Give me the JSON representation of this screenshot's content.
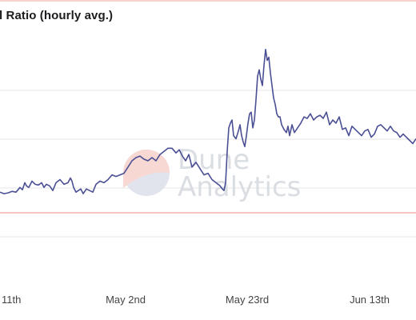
{
  "chart_data": {
    "type": "line",
    "title": "l Ratio (hourly avg.)",
    "xlabel": "",
    "ylabel": "",
    "x_ticks": [
      "11th",
      "May 2nd",
      "May 23rd",
      "Jun 13th"
    ],
    "reference_line": {
      "color": "#f2a59a"
    },
    "series": [
      {
        "color": "#4b4f94",
        "x": [
          0,
          5,
          10,
          15,
          20,
          25,
          28,
          31,
          33,
          36,
          40,
          44,
          48,
          52,
          55,
          58,
          62,
          66,
          70,
          75,
          80,
          85,
          88,
          90,
          92,
          95,
          98,
          101,
          104,
          108,
          112,
          116,
          120,
          125,
          130,
          135,
          140,
          145,
          150,
          155,
          160,
          165,
          170,
          175,
          180,
          185,
          190,
          195,
          200,
          205,
          210,
          215,
          220,
          224,
          228,
          232,
          236,
          240,
          245,
          250,
          255,
          260,
          265,
          270,
          275,
          278,
          280,
          282,
          284,
          286,
          288,
          290,
          292,
          295,
          298,
          300,
          302,
          304,
          306,
          308,
          310,
          312,
          314,
          316,
          318,
          320,
          322,
          324,
          326,
          328,
          330,
          332,
          334,
          336,
          338,
          340,
          342,
          344,
          346,
          348,
          350,
          352,
          355,
          358,
          360,
          362,
          365,
          368,
          372,
          376,
          380,
          384,
          388,
          392,
          396,
          400,
          404,
          408,
          412,
          416,
          420,
          424,
          428,
          432,
          436,
          440,
          444,
          448,
          452,
          456,
          460,
          464,
          468,
          472,
          476,
          480,
          484,
          488,
          492,
          496,
          500,
          504,
          508,
          512,
          516,
          520
        ],
        "y": [
          0.04,
          0.03,
          0.035,
          0.045,
          0.04,
          0.07,
          0.055,
          0.1,
          0.08,
          0.07,
          0.11,
          0.09,
          0.085,
          0.1,
          0.07,
          0.09,
          0.08,
          0.05,
          0.1,
          0.12,
          0.09,
          0.1,
          0.13,
          0.11,
          0.07,
          0.04,
          0.05,
          0.06,
          0.03,
          0.06,
          0.05,
          0.04,
          0.09,
          0.11,
          0.1,
          0.12,
          0.15,
          0.14,
          0.15,
          0.16,
          0.2,
          0.24,
          0.26,
          0.27,
          0.25,
          0.24,
          0.26,
          0.24,
          0.28,
          0.3,
          0.32,
          0.32,
          0.29,
          0.31,
          0.27,
          0.24,
          0.28,
          0.2,
          0.23,
          0.19,
          0.15,
          0.16,
          0.12,
          0.1,
          0.08,
          0.06,
          0.05,
          0.1,
          0.3,
          0.45,
          0.48,
          0.5,
          0.4,
          0.38,
          0.43,
          0.47,
          0.4,
          0.36,
          0.33,
          0.4,
          0.48,
          0.54,
          0.55,
          0.45,
          0.5,
          0.63,
          0.78,
          0.82,
          0.76,
          0.72,
          0.85,
          0.95,
          0.88,
          0.9,
          0.8,
          0.72,
          0.64,
          0.6,
          0.54,
          0.52,
          0.52,
          0.47,
          0.44,
          0.42,
          0.46,
          0.4,
          0.47,
          0.42,
          0.45,
          0.48,
          0.52,
          0.51,
          0.54,
          0.5,
          0.52,
          0.53,
          0.51,
          0.55,
          0.47,
          0.5,
          0.48,
          0.52,
          0.44,
          0.45,
          0.4,
          0.46,
          0.44,
          0.42,
          0.4,
          0.43,
          0.44,
          0.39,
          0.41,
          0.46,
          0.47,
          0.45,
          0.43,
          0.46,
          0.43,
          0.42,
          0.39,
          0.41,
          0.39,
          0.37,
          0.35,
          0.38
        ]
      }
    ]
  },
  "watermark": {
    "line1": "Dune",
    "line2": "Analytics"
  }
}
